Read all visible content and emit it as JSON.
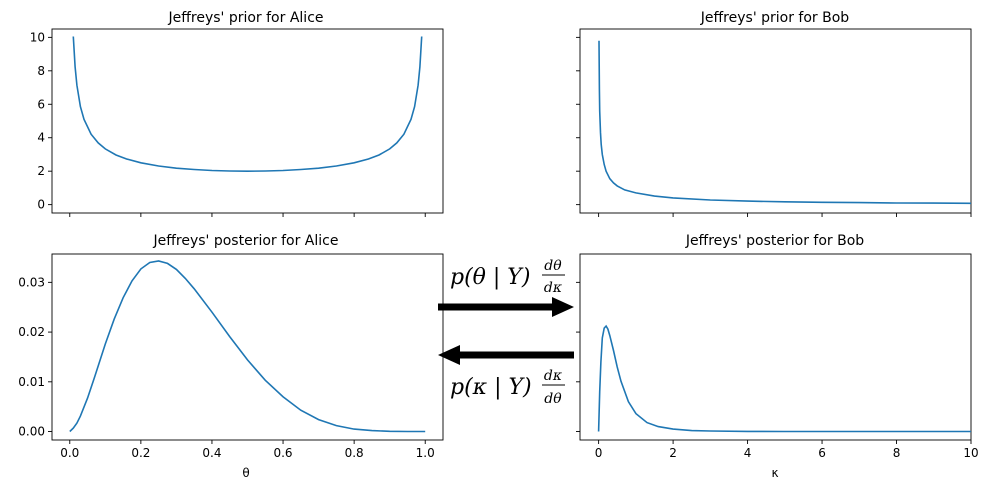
{
  "chart_data": [
    {
      "id": "alice_prior",
      "type": "line",
      "title": "Jeffreys' prior for Alice",
      "xlabel": "",
      "ylabel": "",
      "xlim": [
        -0.05,
        1.05
      ],
      "ylim": [
        -0.5,
        10.5
      ],
      "xticks": [
        0,
        0.2,
        0.4,
        0.6,
        0.8,
        1.0
      ],
      "xtick_labels_visible": false,
      "yticks": [
        0,
        2,
        4,
        6,
        8,
        10
      ],
      "ytick_labels": [
        "0",
        "2",
        "4",
        "6",
        "8",
        "10"
      ],
      "series": [
        {
          "name": "prior",
          "x": [
            0.01,
            0.015,
            0.02,
            0.03,
            0.04,
            0.06,
            0.08,
            0.1,
            0.13,
            0.16,
            0.2,
            0.25,
            0.3,
            0.35,
            0.4,
            0.45,
            0.5,
            0.55,
            0.6,
            0.65,
            0.7,
            0.75,
            0.8,
            0.84,
            0.87,
            0.9,
            0.92,
            0.94,
            0.96,
            0.97,
            0.98,
            0.985,
            0.99
          ],
          "y": [
            10.05,
            8.24,
            7.14,
            5.86,
            5.1,
            4.21,
            3.69,
            3.33,
            2.97,
            2.73,
            2.5,
            2.31,
            2.18,
            2.1,
            2.04,
            2.01,
            2.0,
            2.01,
            2.04,
            2.1,
            2.18,
            2.31,
            2.5,
            2.73,
            2.97,
            3.33,
            3.69,
            4.21,
            5.1,
            5.86,
            7.14,
            8.24,
            10.05
          ]
        }
      ]
    },
    {
      "id": "bob_prior",
      "type": "line",
      "title": "Jeffreys' prior for Bob",
      "xlabel": "",
      "ylabel": "",
      "xlim": [
        -0.5,
        10
      ],
      "ylim": [
        -0.5,
        10.5
      ],
      "xticks": [
        0,
        2,
        4,
        6,
        8,
        10
      ],
      "xtick_labels_visible": false,
      "yticks": [
        0,
        2,
        4,
        6,
        8,
        10
      ],
      "ytick_labels_visible": false,
      "series": [
        {
          "name": "prior",
          "x": [
            0.01,
            0.02,
            0.03,
            0.05,
            0.07,
            0.1,
            0.15,
            0.2,
            0.3,
            0.4,
            0.5,
            0.7,
            1.0,
            1.5,
            2,
            3,
            4,
            5,
            6,
            7,
            8,
            9,
            10
          ],
          "y": [
            9.8,
            6.9,
            5.6,
            4.3,
            3.6,
            3.0,
            2.4,
            2.0,
            1.55,
            1.3,
            1.12,
            0.88,
            0.7,
            0.51,
            0.4,
            0.28,
            0.21,
            0.17,
            0.14,
            0.12,
            0.1,
            0.09,
            0.08
          ]
        }
      ]
    },
    {
      "id": "alice_posterior",
      "type": "line",
      "title": "Jeffreys' posterior for Alice",
      "xlabel": "θ",
      "ylabel": "",
      "xlim": [
        -0.05,
        1.05
      ],
      "ylim": [
        -0.0017,
        0.0357
      ],
      "xticks": [
        0,
        0.2,
        0.4,
        0.6,
        0.8,
        1.0
      ],
      "xtick_labels": [
        "0.0",
        "0.2",
        "0.4",
        "0.6",
        "0.8",
        "1.0"
      ],
      "yticks": [
        0,
        0.01,
        0.02,
        0.03
      ],
      "ytick_labels": [
        "0.00",
        "0.01",
        "0.02",
        "0.03"
      ],
      "series": [
        {
          "name": "posterior",
          "x": [
            0,
            0.01,
            0.02,
            0.03,
            0.05,
            0.07,
            0.1,
            0.125,
            0.15,
            0.175,
            0.2,
            0.225,
            0.25,
            0.275,
            0.3,
            0.325,
            0.35,
            0.4,
            0.45,
            0.5,
            0.55,
            0.6,
            0.65,
            0.7,
            0.75,
            0.8,
            0.85,
            0.9,
            0.95,
            1.0
          ],
          "y": [
            0,
            0.0007,
            0.0017,
            0.0031,
            0.0067,
            0.011,
            0.0176,
            0.0226,
            0.0269,
            0.0303,
            0.0327,
            0.034,
            0.0343,
            0.0338,
            0.0326,
            0.0308,
            0.0287,
            0.024,
            0.0191,
            0.0144,
            0.0103,
            0.007,
            0.0043,
            0.0024,
            0.0012,
            0.0005,
            0.0002,
            5e-05,
            1e-05,
            0
          ]
        }
      ]
    },
    {
      "id": "bob_posterior",
      "type": "line",
      "title": "Jeffreys' posterior for Bob",
      "xlabel": "κ",
      "ylabel": "",
      "xlim": [
        -0.5,
        10
      ],
      "ylim": [
        -0.0017,
        0.0357
      ],
      "xticks": [
        0,
        2,
        4,
        6,
        8,
        10
      ],
      "xtick_labels": [
        "0",
        "2",
        "4",
        "6",
        "8",
        "10"
      ],
      "yticks": [
        0,
        0.01,
        0.02,
        0.03
      ],
      "ytick_labels_visible": false,
      "series": [
        {
          "name": "posterior",
          "x": [
            0,
            0.03,
            0.06,
            0.1,
            0.15,
            0.2,
            0.25,
            0.3,
            0.4,
            0.5,
            0.6,
            0.8,
            1.0,
            1.3,
            1.6,
            2.0,
            2.5,
            3,
            4,
            5,
            6,
            8,
            10
          ],
          "y": [
            0,
            0.008,
            0.014,
            0.0188,
            0.0208,
            0.0212,
            0.0206,
            0.0193,
            0.0163,
            0.013,
            0.0101,
            0.006,
            0.0036,
            0.0018,
            0.001,
            0.0005,
            0.0002,
            0.0001,
            3e-05,
            1e-05,
            0,
            0,
            0
          ]
        }
      ]
    }
  ],
  "annotations": {
    "arrow_right_label": "p(θ | Y) dθ/dκ",
    "arrow_left_label": "p(κ | Y) dκ/dθ",
    "arrow_right": {
      "from": "alice_posterior",
      "to": "bob_posterior"
    },
    "arrow_left": {
      "from": "bob_posterior",
      "to": "alice_posterior"
    }
  },
  "colors": {
    "line": "#1f77b4",
    "axes": "#000000",
    "arrow": "#000000",
    "background": "#ffffff"
  }
}
